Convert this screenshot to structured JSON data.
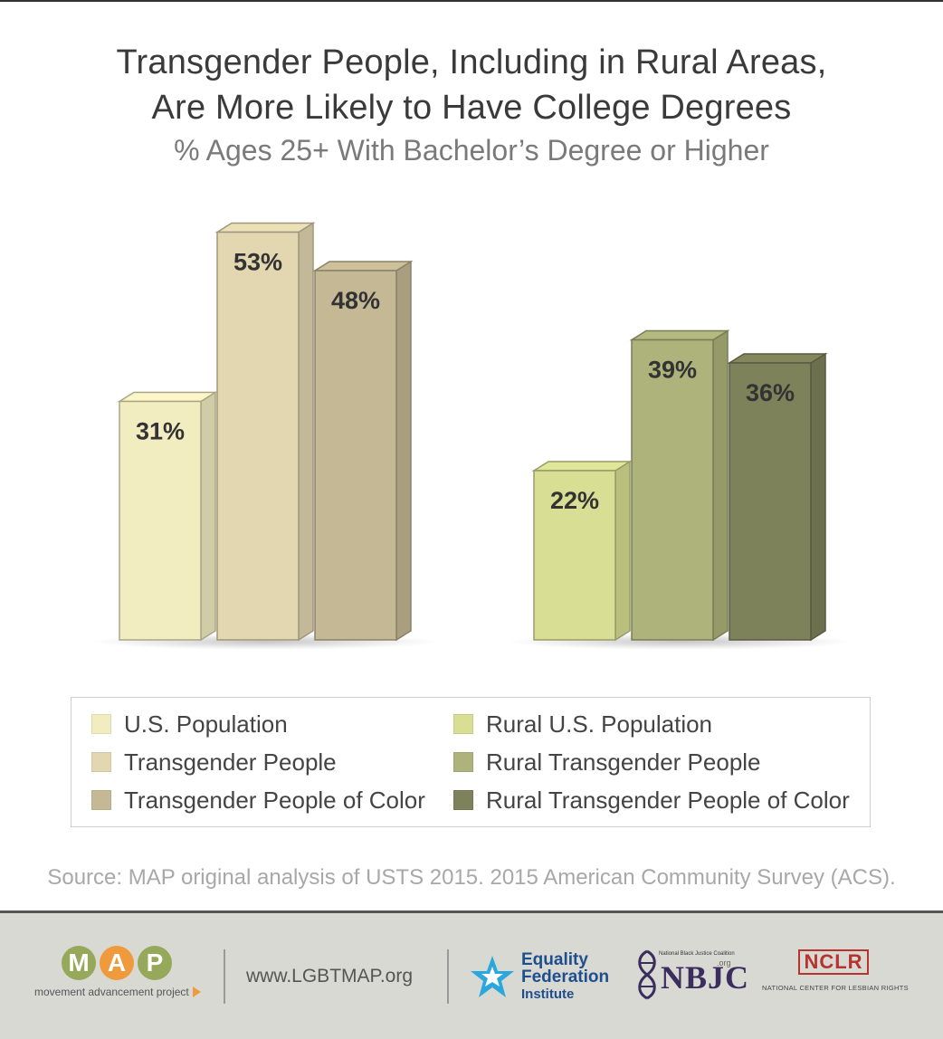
{
  "title_line1": "Transgender People, Including in Rural Areas,",
  "title_line2": "Are More Likely to Have College Degrees",
  "subtitle": "% Ages 25+ With Bachelor’s Degree or Higher",
  "chart_data": {
    "type": "bar",
    "style": "3d",
    "title": "Transgender People, Including in Rural Areas, Are More Likely to Have College Degrees",
    "subtitle": "% Ages 25+ With Bachelor’s Degree or Higher",
    "unit": "%",
    "groups": [
      {
        "name": "",
        "bars": [
          {
            "series": "U.S. Population",
            "value": 31,
            "label": "31%",
            "color": "#f2edc1"
          },
          {
            "series": "Transgender People",
            "value": 53,
            "label": "53%",
            "color": "#e3d7b1"
          },
          {
            "series": "Transgender People of Color",
            "value": 48,
            "label": "48%",
            "color": "#c5b995"
          }
        ]
      },
      {
        "name": "",
        "bars": [
          {
            "series": "Rural U.S. Population",
            "value": 22,
            "label": "22%",
            "color": "#d8de93"
          },
          {
            "series": "Rural Transgender People",
            "value": 39,
            "label": "39%",
            "color": "#adb37a"
          },
          {
            "series": "Rural Transgender People of Color",
            "value": 36,
            "label": "36%",
            "color": "#7d825a"
          }
        ]
      }
    ],
    "ylim": [
      0,
      60
    ],
    "grid": false,
    "legend": "bottom"
  },
  "legend": [
    {
      "label": "U.S. Population",
      "color": "#f2edc1"
    },
    {
      "label": "Transgender People",
      "color": "#e3d7b1"
    },
    {
      "label": "Transgender People of Color",
      "color": "#c5b995"
    },
    {
      "label": "Rural U.S. Population",
      "color": "#d8de93"
    },
    {
      "label": "Rural Transgender People",
      "color": "#adb37a"
    },
    {
      "label": "Rural Transgender People of Color",
      "color": "#7d825a"
    }
  ],
  "source": "Source: MAP original analysis of USTS 2015. 2015 American Community Survey (ACS).",
  "footer": {
    "map_letters": [
      "M",
      "A",
      "P"
    ],
    "map_tagline": "movement advancement project",
    "url": "www.LGBTMAP.org",
    "efi_line1": "Equality",
    "efi_line2": "Federation",
    "efi_line3": "Institute",
    "nbjc_small": "National Black Justice Coalition",
    "nbjc_big": "NBJC",
    "nbjc_org": ".org",
    "nclr_logo": "NCLR",
    "nclr_sub": "NATIONAL CENTER FOR LESBIAN RIGHTS"
  }
}
